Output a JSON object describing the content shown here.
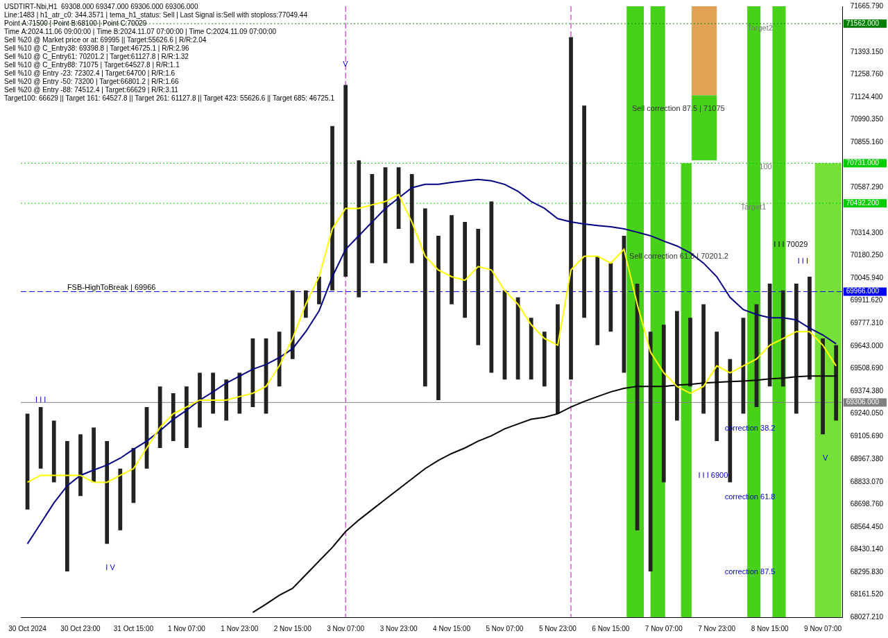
{
  "chart_data": {
    "type": "line",
    "grid": false,
    "header": [
      "USDTIRT-Nbi,H1  69308.000 69347.000 69306.000 69306.000",
      "Line:1483 | h1_atr_c0: 344.3571 | tema_h1_status: Sell | Last Signal is:Sell with stoploss:77049.44",
      "Point A:71500 | Point B:68100 | Point C:70029",
      "Time A:2024.11.06 09:00:00 | Time B:2024.11.07 07:00:00 | Time C:2024.11.09 07:00:00",
      "Sell %20 @ Market price or at: 69995 || Target:55626.6 | R/R:2.04",
      "Sell %10 @ C_Entry38: 69398.8 | Target:46725.1 | R/R:2.96",
      "Sell %10 @ C_Entry61: 70201.2 | Target:61127.8 | R/R:1.32",
      "Sell %10 @ C_Entry88: 71075 | Target:64527.8 | R/R:1.1",
      "Sell %10 @ Entry -23: 72302.4 | Target:64700 | R/R:1.6",
      "Sell %20 @ Entry -50: 73200 | Target:66801.2 | R/R:1.66",
      "Sell %20 @ Entry -88: 74512.4 | Target:66629 | R/R:3.11",
      "Target100: 66629 || Target 161: 64527.8 || Target 261: 61127.8 || Target 423: 55626.6 || Target 685: 46725.1"
    ],
    "categories": [
      "30 Oct 2024",
      null,
      null,
      null,
      "30 Oct 23:00",
      null,
      null,
      null,
      "31 Oct 15:00",
      null,
      null,
      null,
      "1 Nov 07:00",
      null,
      null,
      null,
      "1 Nov 23:00",
      null,
      null,
      null,
      "2 Nov 15:00",
      null,
      null,
      null,
      "3 Nov 07:00",
      null,
      null,
      null,
      "3 Nov 23:00",
      null,
      null,
      null,
      "4 Nov 15:00",
      null,
      null,
      null,
      "5 Nov 07:00",
      null,
      null,
      null,
      "5 Nov 23:00",
      null,
      null,
      null,
      "6 Nov 15:00",
      null,
      null,
      null,
      "7 Nov 07:00",
      null,
      null,
      null,
      "7 Nov 23:00",
      null,
      null,
      null,
      "8 Nov 15:00",
      null,
      null,
      null,
      "9 Nov 07:00",
      null
    ],
    "series": [
      {
        "type": "line",
        "color": "#ffff00",
        "line_style": "solid",
        "values": [
          68831,
          68872,
          68872,
          68872,
          68872,
          68831,
          68831,
          68872,
          68912,
          69035,
          69157,
          69239,
          69279,
          69320,
          69320,
          69320,
          69341,
          69361,
          69402,
          69524,
          69687,
          69891,
          70055,
          70340,
          70462,
          70462,
          70483,
          70503,
          70544,
          70381,
          70177,
          70095,
          70055,
          70034,
          70116,
          70095,
          69973,
          69891,
          69769,
          69687,
          69647,
          70095,
          70177,
          70177,
          70136,
          70218,
          69891,
          69606,
          69483,
          69402,
          69361,
          69402,
          69524,
          69483,
          69524,
          69565,
          69647,
          69687,
          69728,
          69728,
          69647,
          69524
        ]
      },
      {
        "type": "line",
        "color": "#000080",
        "line_style": "solid",
        "values": [
          68464,
          68586,
          68708,
          68810,
          68872,
          68904,
          68933,
          68974,
          69027,
          69076,
          69137,
          69206,
          69259,
          69320,
          69369,
          69422,
          69463,
          69504,
          69532,
          69573,
          69626,
          69728,
          69851,
          70055,
          70218,
          70299,
          70381,
          70462,
          70524,
          70585,
          70605,
          70605,
          70617,
          70626,
          70634,
          70626,
          70605,
          70564,
          70503,
          70462,
          70401,
          70381,
          70369,
          70360,
          70352,
          70340,
          70320,
          70299,
          70267,
          70238,
          70197,
          70136,
          70055,
          69932,
          69859,
          69830,
          69810,
          69810,
          69798,
          69749,
          69708,
          69655
        ]
      },
      {
        "type": "line",
        "color": "#000000",
        "line_style": "solid",
        "values": [
          null,
          null,
          null,
          null,
          null,
          null,
          null,
          null,
          null,
          null,
          null,
          null,
          null,
          null,
          null,
          null,
          null,
          68056,
          68105,
          68158,
          68199,
          68280,
          68362,
          68443,
          68537,
          68606,
          68668,
          68729,
          68790,
          68851,
          68912,
          68961,
          69002,
          69035,
          69076,
          69108,
          69149,
          69178,
          69206,
          69218,
          69239,
          69279,
          69312,
          69341,
          69369,
          69390,
          69402,
          69402,
          69402,
          69410,
          69414,
          69422,
          69426,
          69430,
          69434,
          69439,
          69447,
          69451,
          69459,
          69463,
          69463,
          69463
        ]
      },
      {
        "type": "bar",
        "color": "#222222",
        "values": [
          [
            68668,
            69239
          ],
          [
            68912,
            69279
          ],
          [
            68831,
            69198
          ],
          [
            68300,
            69076
          ],
          [
            68749,
            69116
          ],
          [
            68831,
            69157
          ],
          [
            68464,
            69076
          ],
          [
            68545,
            68912
          ],
          [
            68708,
            69035
          ],
          [
            68912,
            69279
          ],
          [
            69035,
            69402
          ],
          [
            69076,
            69361
          ],
          [
            69035,
            69402
          ],
          [
            69157,
            69483
          ],
          [
            69239,
            69483
          ],
          [
            69198,
            69443
          ],
          [
            69239,
            69483
          ],
          [
            69279,
            69687
          ],
          [
            69239,
            69687
          ],
          [
            69402,
            69728
          ],
          [
            69565,
            69973
          ],
          [
            69810,
            69973
          ],
          [
            69891,
            70055
          ],
          [
            69973,
            70952
          ],
          [
            70055,
            71197
          ],
          [
            69932,
            70748
          ],
          [
            70136,
            70666
          ],
          [
            70136,
            70707
          ],
          [
            70340,
            70707
          ],
          [
            70136,
            70666
          ],
          [
            69402,
            70462
          ],
          [
            69320,
            70299
          ],
          [
            69891,
            70422
          ],
          [
            69810,
            70381
          ],
          [
            69647,
            70340
          ],
          [
            69483,
            70503
          ],
          [
            69443,
            69973
          ],
          [
            69443,
            69932
          ],
          [
            69443,
            69810
          ],
          [
            69402,
            69728
          ],
          [
            69239,
            69891
          ],
          [
            69443,
            71482
          ],
          [
            69810,
            71074
          ],
          [
            69647,
            70177
          ],
          [
            69728,
            70136
          ],
          [
            69483,
            70299
          ],
          [
            68545,
            70014
          ],
          [
            68300,
            69728
          ],
          [
            68831,
            69769
          ],
          [
            69198,
            69851
          ],
          [
            69402,
            69810
          ],
          [
            69239,
            69891
          ],
          [
            69076,
            69728
          ],
          [
            68831,
            69565
          ],
          [
            69239,
            69810
          ],
          [
            69279,
            69891
          ],
          [
            69402,
            70014
          ],
          [
            69402,
            69973
          ],
          [
            69239,
            70014
          ],
          [
            69443,
            70055
          ],
          [
            69116,
            69687
          ],
          [
            69198,
            69647
          ]
        ]
      }
    ],
    "ylim": [
      68027.21,
      71665.79
    ],
    "yticks": [
      {
        "value": 68027.21,
        "label": "68027.210"
      },
      {
        "value": 68161.52,
        "label": "68161.520"
      },
      {
        "value": 68295.83,
        "label": "68295.830"
      },
      {
        "value": 68430.14,
        "label": "68430.140"
      },
      {
        "value": 68564.45,
        "label": "68564.450"
      },
      {
        "value": 68698.76,
        "label": "68698.760"
      },
      {
        "value": 68833.07,
        "label": "68833.070"
      },
      {
        "value": 68967.38,
        "label": "68967.380"
      },
      {
        "value": 69105.69,
        "label": "69105.690"
      },
      {
        "value": 69240.05,
        "label": "69240.050"
      },
      {
        "value": 69374.38,
        "label": "69374.380"
      },
      {
        "value": 69508.69,
        "label": "69508.690"
      },
      {
        "value": 69643,
        "label": "69643.000"
      },
      {
        "value": 69777.31,
        "label": "69777.310"
      },
      {
        "value": 69911.62,
        "label": "69911.620"
      },
      {
        "value": 70045.94,
        "label": "70045.940"
      },
      {
        "value": 70180.25,
        "label": "70180.250"
      },
      {
        "value": 70314.3,
        "label": "70314.300"
      },
      {
        "value": 70587.29,
        "label": "70587.290"
      },
      {
        "value": 70855.16,
        "label": "70855.160"
      },
      {
        "value": 70990.35,
        "label": "70990.350"
      },
      {
        "value": 71124.4,
        "label": "71124.400"
      },
      {
        "value": 71258.76,
        "label": "71258.760"
      },
      {
        "value": 71393.15,
        "label": "71393.150"
      },
      {
        "value": 71665.79,
        "label": "71665.790"
      }
    ],
    "levels": [
      {
        "value": 71562,
        "label": "71562.000",
        "color": "#008000",
        "line_style": "dotted"
      },
      {
        "value": 70731,
        "label": "70731.000",
        "color": "#00cc00",
        "line_style": "dotted"
      },
      {
        "value": 70492.2,
        "label": "70492.200",
        "color": "#00cc00",
        "line_style": "dotted"
      },
      {
        "value": 69966,
        "label": "69966.000",
        "color": "#0000ff",
        "line_style": "dashed"
      },
      {
        "value": 69306,
        "label": "69306.000",
        "color": "#808080",
        "line_style": "solid"
      }
    ],
    "zones": [
      {
        "start": 45.2,
        "end": 46.5,
        "low": 68027.21,
        "high": 71665.79,
        "color": "#33cc00"
      },
      {
        "start": 47.0,
        "end": 48.1,
        "low": 68027.21,
        "high": 71665.79,
        "color": "#33cc00"
      },
      {
        "start": 49.3,
        "end": 50.1,
        "low": 68027.21,
        "high": 70731,
        "color": "#33cc00"
      },
      {
        "start": 50.1,
        "end": 52.0,
        "low": 70748,
        "high": 71136,
        "color": "#33cc00"
      },
      {
        "start": 50.1,
        "end": 52.0,
        "low": 71136,
        "high": 71665.79,
        "color": "#dd9944"
      },
      {
        "start": 54.3,
        "end": 55.3,
        "low": 68027.21,
        "high": 71665.79,
        "color": "#33cc00"
      },
      {
        "start": 56.2,
        "end": 57.2,
        "low": 68027.21,
        "high": 71665.79,
        "color": "#33cc00"
      },
      {
        "start": 59.4,
        "end": 61.4,
        "low": 68027.21,
        "high": 70731,
        "color": "#66dd22"
      }
    ],
    "vlines": [
      {
        "at": 24,
        "color": "#cc00cc",
        "line_style": "dashed"
      },
      {
        "at": 41,
        "color": "#cc00cc",
        "line_style": "dashed"
      }
    ],
    "annotations": [
      {
        "text": "FSB-HighToBreak | 69966",
        "x": 3,
        "y": 69991,
        "color": "#000000"
      },
      {
        "text": "Sell correction 87.5 | 71075",
        "x": 45.6,
        "y": 71054,
        "color": "#333333"
      },
      {
        "text": "Sell correction 61.8 | 70201.2",
        "x": 45.4,
        "y": 70177,
        "color": "#333333"
      },
      {
        "text": "correction 38.2",
        "x": 52.6,
        "y": 69149,
        "color": "#0000cc"
      },
      {
        "text": "correction 61.8",
        "x": 52.6,
        "y": 68741,
        "color": "#0000cc"
      },
      {
        "text": "correction 87.5",
        "x": 52.6,
        "y": 68296,
        "color": "#0000cc"
      },
      {
        "text": "I I I 70029",
        "x": 56.3,
        "y": 70246,
        "color": "#000000"
      },
      {
        "text": "I I I 6900",
        "x": 50.6,
        "y": 68868,
        "color": "#0000cc"
      },
      {
        "text": "Target2",
        "x": 54.3,
        "y": 71535,
        "color": "#777777"
      },
      {
        "text": "Target1",
        "x": 53.8,
        "y": 70467,
        "color": "#777777"
      },
      {
        "text": "100",
        "x": 55.2,
        "y": 70707,
        "color": "#777777"
      },
      {
        "text": "I I I",
        "x": 0.6,
        "y": 69320,
        "color": "#0000cc"
      },
      {
        "text": "I V",
        "x": 5.9,
        "y": 68321,
        "color": "#0000cc"
      },
      {
        "text": "V",
        "x": 23.8,
        "y": 71319,
        "color": "#0000cc"
      },
      {
        "text": "I I I",
        "x": 58.1,
        "y": 70144,
        "color": "#0000cc"
      },
      {
        "text": "V",
        "x": 60.0,
        "y": 68974,
        "color": "#0000cc"
      }
    ]
  }
}
